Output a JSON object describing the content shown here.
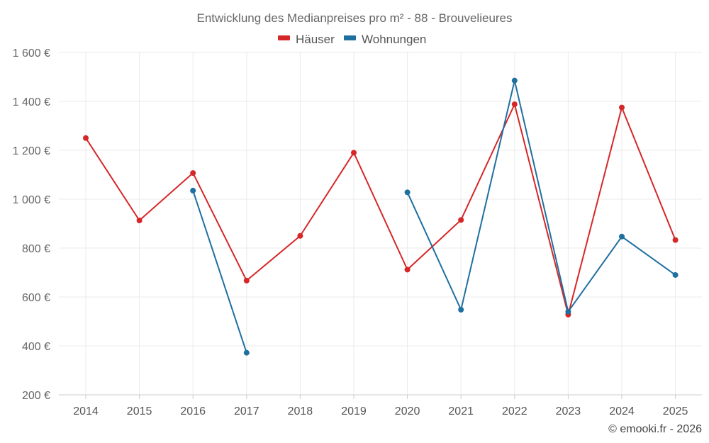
{
  "chart_data": {
    "type": "line",
    "title": "Entwicklung des Medianpreises pro m² - 88 - Brouvelieures",
    "categories": [
      "2014",
      "2015",
      "2016",
      "2017",
      "2018",
      "2019",
      "2020",
      "2021",
      "2022",
      "2023",
      "2024",
      "2025"
    ],
    "series": [
      {
        "name": "Häuser",
        "color": "#d62728",
        "values": [
          1250,
          913,
          1107,
          667,
          850,
          1190,
          712,
          915,
          1388,
          528,
          1375,
          833
        ]
      },
      {
        "name": "Wohnungen",
        "color": "#1f6fa0",
        "values": [
          null,
          null,
          1035,
          372,
          null,
          null,
          1028,
          548,
          1485,
          540,
          847,
          690
        ]
      }
    ],
    "y_ticks": [
      "200 €",
      "400 €",
      "600 €",
      "800 €",
      "1 000 €",
      "1 200 €",
      "1 400 €",
      "1 600 €"
    ],
    "ylim": [
      200,
      1600
    ],
    "grid": true,
    "legend_position": "top-center",
    "credit": "© emooki.fr - 2026"
  }
}
